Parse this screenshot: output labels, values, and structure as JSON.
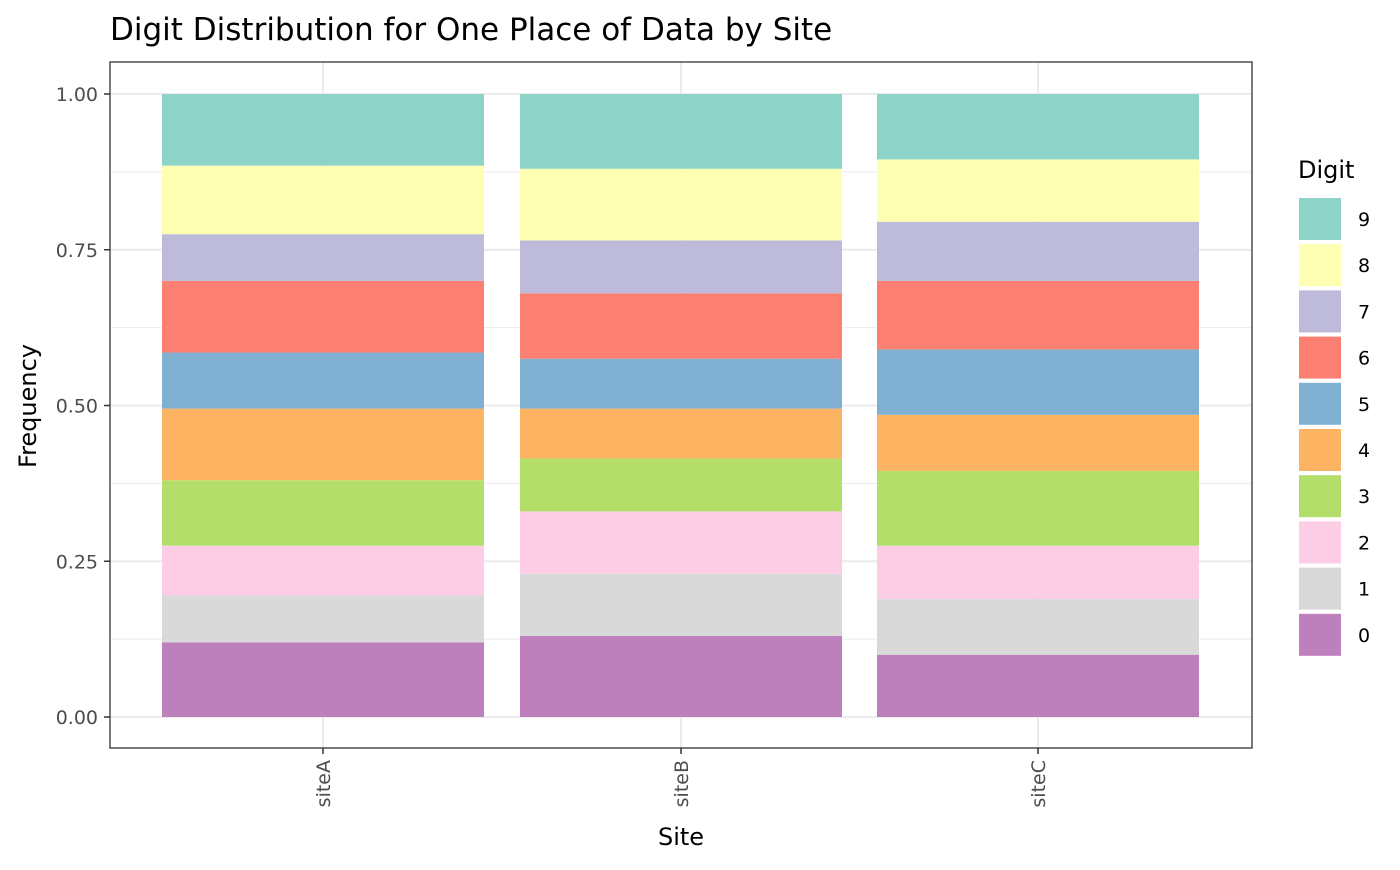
{
  "chart_data": {
    "type": "bar",
    "stacked": true,
    "title": "Digit Distribution for One Place of Data by Site",
    "xlabel": "Site",
    "ylabel": "Frequency",
    "categories": [
      "siteA",
      "siteB",
      "siteC"
    ],
    "ylim": [
      0,
      1
    ],
    "yticks": [
      "0.00",
      "0.25",
      "0.50",
      "0.75",
      "1.00"
    ],
    "ytick_values": [
      0,
      0.25,
      0.5,
      0.75,
      1.0
    ],
    "grid": true,
    "legend": {
      "title": "Digit",
      "position": "right"
    },
    "series": [
      {
        "name": "0",
        "color": "#BD80BD",
        "values": [
          0.12,
          0.13,
          0.1
        ]
      },
      {
        "name": "1",
        "color": "#D9D9D9",
        "values": [
          0.075,
          0.1,
          0.09
        ]
      },
      {
        "name": "2",
        "color": "#FCCDE5",
        "values": [
          0.08,
          0.1,
          0.085
        ]
      },
      {
        "name": "3",
        "color": "#B3DE69",
        "values": [
          0.105,
          0.085,
          0.12
        ]
      },
      {
        "name": "4",
        "color": "#FDB462",
        "values": [
          0.115,
          0.08,
          0.09
        ]
      },
      {
        "name": "5",
        "color": "#80B1D3",
        "values": [
          0.09,
          0.08,
          0.105
        ]
      },
      {
        "name": "6",
        "color": "#FB8072",
        "values": [
          0.115,
          0.105,
          0.11
        ]
      },
      {
        "name": "7",
        "color": "#BEBADA",
        "values": [
          0.075,
          0.085,
          0.095
        ]
      },
      {
        "name": "8",
        "color": "#FFFFB3",
        "values": [
          0.11,
          0.115,
          0.1
        ]
      },
      {
        "name": "9",
        "color": "#8DD3C7",
        "values": [
          0.115,
          0.12,
          0.105
        ]
      }
    ]
  }
}
